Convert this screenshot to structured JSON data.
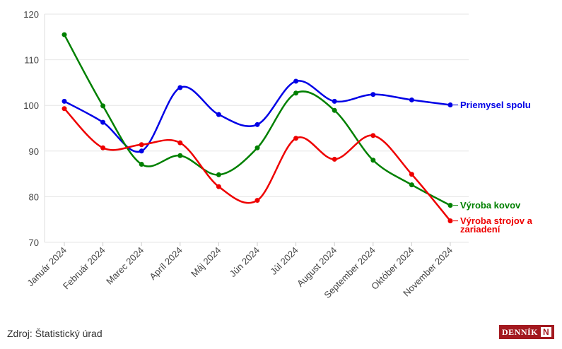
{
  "chart_data": {
    "type": "line",
    "categories": [
      "Január 2024",
      "Február 2024",
      "Marec 2024",
      "Apríl 2024",
      "Máj 2024",
      "Jún 2024",
      "Júl 2024",
      "August 2024",
      "September 2024",
      "Október 2024",
      "November 2024"
    ],
    "series": [
      {
        "name": "Priemysel spolu",
        "color": "#0000e6",
        "values": [
          100.9,
          96.3,
          90.0,
          103.9,
          98.0,
          95.8,
          105.3,
          100.9,
          102.4,
          101.2,
          100.1
        ]
      },
      {
        "name": "Výroba kovov",
        "color": "#008000",
        "values": [
          115.5,
          99.9,
          87.1,
          89.0,
          84.8,
          90.7,
          102.7,
          98.9,
          88.0,
          82.6,
          78.1
        ]
      },
      {
        "name": "Výroba strojov a zariadení",
        "color": "#ee0000",
        "values": [
          99.3,
          90.7,
          91.4,
          91.8,
          82.2,
          79.2,
          92.8,
          88.2,
          93.4,
          84.9,
          74.7
        ]
      }
    ],
    "ylim": [
      70,
      120
    ],
    "yticks": [
      70,
      80,
      90,
      100,
      110,
      120
    ],
    "grid": true,
    "source": "Zdroj: Štatistický úrad"
  },
  "logo": {
    "text": "DENNÍK",
    "mark": "N"
  }
}
